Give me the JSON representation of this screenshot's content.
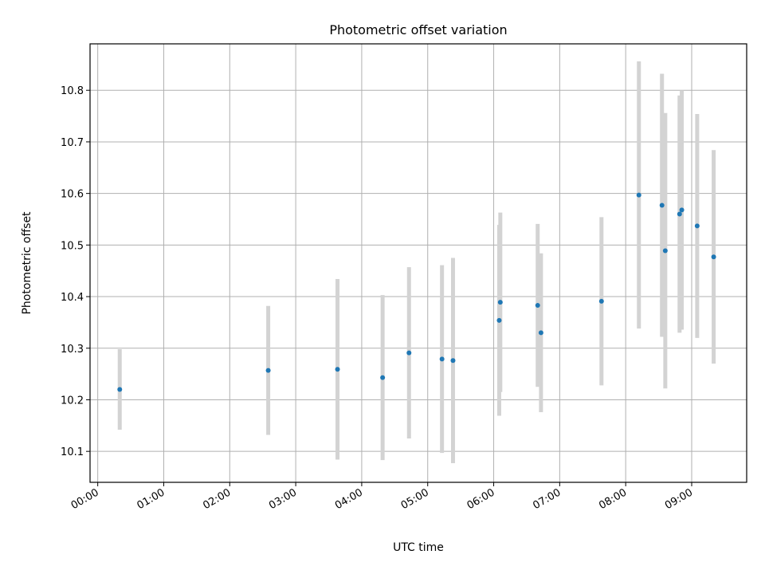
{
  "chart_data": {
    "type": "scatter",
    "title": "Photometric offset variation",
    "xlabel": "UTC time",
    "ylabel": "Photometric offset",
    "xlim": [
      "23:53",
      "09:50"
    ],
    "ylim": [
      10.04,
      10.89
    ],
    "grid": true,
    "x_ticks": [
      "00:00",
      "01:00",
      "02:00",
      "03:00",
      "04:00",
      "05:00",
      "06:00",
      "07:00",
      "08:00",
      "09:00"
    ],
    "y_ticks": [
      "10.1",
      "10.2",
      "10.3",
      "10.4",
      "10.5",
      "10.6",
      "10.7",
      "10.8"
    ],
    "colors": {
      "marker": "#1f77b4",
      "errorbar": "#d3d3d3",
      "grid": "#b0b0b0"
    },
    "points": [
      {
        "x": "00:20",
        "y": 10.22,
        "yerr": 0.078
      },
      {
        "x": "02:35",
        "y": 10.257,
        "yerr": 0.125
      },
      {
        "x": "03:38",
        "y": 10.259,
        "yerr": 0.175
      },
      {
        "x": "04:19",
        "y": 10.243,
        "yerr": 0.16
      },
      {
        "x": "04:43",
        "y": 10.291,
        "yerr": 0.166
      },
      {
        "x": "05:13",
        "y": 10.279,
        "yerr": 0.182
      },
      {
        "x": "05:23",
        "y": 10.276,
        "yerr": 0.199
      },
      {
        "x": "06:05",
        "y": 10.354,
        "yerr": 0.185
      },
      {
        "x": "06:06",
        "y": 10.389,
        "yerr": 0.174
      },
      {
        "x": "06:40",
        "y": 10.383,
        "yerr": 0.158
      },
      {
        "x": "06:43",
        "y": 10.33,
        "yerr": 0.154
      },
      {
        "x": "07:38",
        "y": 10.391,
        "yerr": 0.163
      },
      {
        "x": "08:12",
        "y": 10.597,
        "yerr": 0.259
      },
      {
        "x": "08:33",
        "y": 10.577,
        "yerr": 0.255
      },
      {
        "x": "08:36",
        "y": 10.489,
        "yerr": 0.267
      },
      {
        "x": "08:49",
        "y": 10.56,
        "yerr": 0.23
      },
      {
        "x": "08:51",
        "y": 10.568,
        "yerr": 0.232
      },
      {
        "x": "09:05",
        "y": 10.537,
        "yerr": 0.217
      },
      {
        "x": "09:20",
        "y": 10.477,
        "yerr": 0.207
      }
    ]
  }
}
